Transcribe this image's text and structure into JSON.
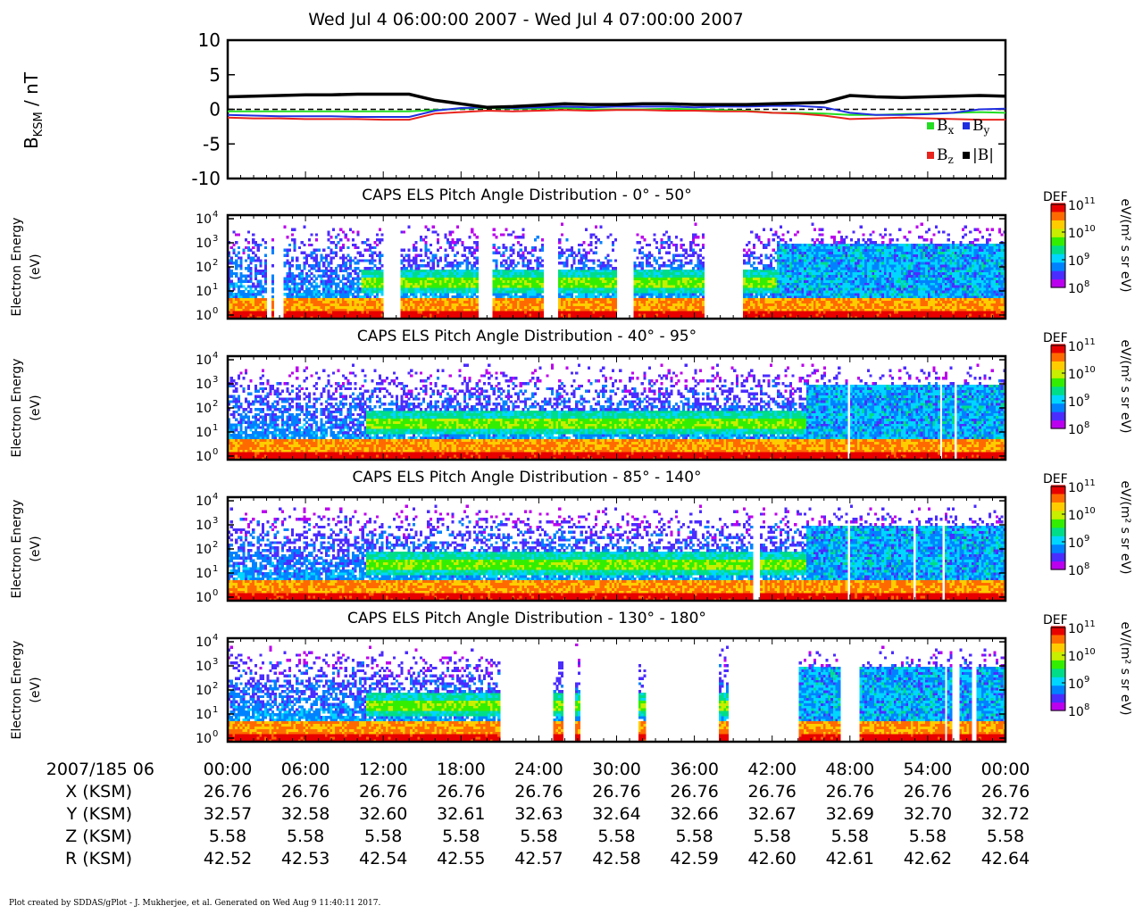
{
  "title": "Wed Jul 4 06:00:00 2007 - Wed Jul 4 07:00:00 2007",
  "footer": "Plot created by SDDAS/gPlot - J. Mukherjee, et al.  Generated on Wed Aug 9 11:40:11 2017.",
  "colors": {
    "bx": "#22dd22",
    "by": "#1f2fe0",
    "bz": "#e8241c",
    "btot": "#000000",
    "colormap": [
      "#bb00ee",
      "#4b2cff",
      "#0082ff",
      "#00d6ff",
      "#00dd88",
      "#33ee00",
      "#c8ee00",
      "#ffcc00",
      "#ff6a00",
      "#e80000"
    ]
  },
  "chart_data": [
    {
      "type": "line",
      "ylabel_main": "B",
      "ylabel_sub": "KSM",
      "ylabel_rest": " / nT",
      "yticks": [
        10,
        5,
        0,
        -5,
        -10
      ],
      "ylim": [
        -10,
        10
      ],
      "zero_line": "dashed",
      "x": [
        0,
        2,
        4,
        6,
        8,
        10,
        12,
        14,
        16,
        18,
        20,
        22,
        24,
        26,
        28,
        30,
        32,
        34,
        36,
        38,
        40,
        42,
        44,
        46,
        48,
        50,
        52,
        54,
        56,
        58,
        60
      ],
      "series": [
        {
          "name": "|B|",
          "color": "#000000",
          "values": [
            1.8,
            1.9,
            2.0,
            2.1,
            2.1,
            2.2,
            2.2,
            2.2,
            1.3,
            0.8,
            0.3,
            0.4,
            0.6,
            0.8,
            0.7,
            0.7,
            0.8,
            0.8,
            0.7,
            0.7,
            0.7,
            0.8,
            0.9,
            1.0,
            2.0,
            1.8,
            1.7,
            1.8,
            1.9,
            2.0,
            1.9
          ]
        },
        {
          "name": "B_x",
          "color": "#22dd22",
          "values": [
            -0.3,
            -0.3,
            -0.3,
            -0.3,
            -0.3,
            -0.3,
            -0.3,
            -0.3,
            -0.1,
            0.1,
            0.2,
            0.1,
            0.1,
            0.2,
            0.0,
            0.0,
            0.0,
            0.1,
            0.0,
            -0.1,
            -0.2,
            -0.5,
            -0.5,
            -0.6,
            -0.8,
            -0.8,
            -0.7,
            -0.6,
            -0.5,
            -0.4,
            -0.5
          ]
        },
        {
          "name": "B_y",
          "color": "#1f2fe0",
          "values": [
            -0.8,
            -0.9,
            -1.0,
            -1.0,
            -1.0,
            -1.1,
            -1.1,
            -1.1,
            -0.2,
            0.2,
            0.3,
            0.2,
            0.3,
            0.4,
            0.3,
            0.4,
            0.4,
            0.4,
            0.3,
            0.4,
            0.4,
            0.5,
            0.5,
            0.3,
            -0.5,
            -0.8,
            -0.8,
            -0.7,
            -0.5,
            0.0,
            0.1
          ]
        },
        {
          "name": "B_z",
          "color": "#e8241c",
          "values": [
            -1.2,
            -1.3,
            -1.3,
            -1.4,
            -1.4,
            -1.4,
            -1.5,
            -1.5,
            -0.6,
            -0.4,
            -0.2,
            -0.3,
            -0.2,
            -0.1,
            -0.2,
            -0.1,
            -0.1,
            -0.2,
            -0.2,
            -0.3,
            -0.3,
            -0.5,
            -0.6,
            -0.9,
            -1.4,
            -1.3,
            -1.2,
            -1.3,
            -1.4,
            -1.5,
            -1.5
          ]
        }
      ],
      "legend": [
        {
          "label": "B",
          "sub": "x",
          "color": "#22dd22"
        },
        {
          "label": "B",
          "sub": "y",
          "color": "#1f2fe0"
        },
        {
          "label": "B",
          "sub": "z",
          "color": "#e8241c"
        },
        {
          "label": "|B|",
          "sub": "",
          "color": "#000000"
        }
      ],
      "legend_position": "bottom-right"
    },
    {
      "type": "heatmap",
      "title": "CAPS ELS Pitch Angle Distribution - 0° - 50°",
      "ylabel": [
        "Electron Energy",
        "(eV)"
      ],
      "yaxis": "log",
      "ylim_decades": [
        0,
        4
      ],
      "colorbar": {
        "label": "DEF",
        "unit": "eV/(m² s sr eV)",
        "ticks": [
          "11",
          "10",
          "9",
          "8"
        ]
      },
      "band_ev": [
        10,
        100
      ],
      "gaps_s": [
        [
          15.5,
          17.5
        ],
        [
          18.8,
          21.3
        ],
        [
          22.0,
          22.4
        ],
        [
          63.5,
          70.5
        ],
        [
          102.5,
          108.5
        ],
        [
          129.5,
          136.0
        ],
        [
          159.5,
          166.5
        ],
        [
          195.5,
          211.5
        ]
      ],
      "onset_s": 55,
      "active_from_s": 226
    },
    {
      "type": "heatmap",
      "title": "CAPS ELS Pitch Angle Distribution - 40° - 95°",
      "ylabel": [
        "Electron Energy",
        "(eV)"
      ],
      "yaxis": "log",
      "ylim_decades": [
        0,
        4
      ],
      "colorbar": {
        "label": "DEF",
        "unit": "eV/(m² s sr eV)",
        "ticks": [
          "11",
          "10",
          "9",
          "8"
        ]
      },
      "band_ev": [
        10,
        100
      ],
      "gaps_s": [
        [
          255.0,
          255.5
        ],
        [
          283.5,
          284.0
        ],
        [
          293.0,
          293.5
        ],
        [
          299.0,
          299.5
        ]
      ],
      "onset_s": 57,
      "active_from_s": 238
    },
    {
      "type": "heatmap",
      "title": "CAPS ELS Pitch Angle Distribution - 85° - 140°",
      "ylabel": [
        "Electron Energy",
        "(eV)"
      ],
      "yaxis": "log",
      "ylim_decades": [
        0,
        4
      ],
      "colorbar": {
        "label": "DEF",
        "unit": "eV/(m² s sr eV)",
        "ticks": [
          "11",
          "10",
          "9",
          "8"
        ]
      },
      "band_ev": [
        10,
        100
      ],
      "gaps_s": [
        [
          215.5,
          218.5
        ],
        [
          255.0,
          255.5
        ],
        [
          282.0,
          282.5
        ],
        [
          294.0,
          294.5
        ]
      ],
      "onset_s": 57,
      "active_from_s": 238
    },
    {
      "type": "heatmap",
      "title": "CAPS ELS Pitch Angle Distribution - 130° - 180°",
      "ylabel": [
        "Electron Energy",
        "(eV)"
      ],
      "yaxis": "log",
      "ylim_decades": [
        0,
        4
      ],
      "colorbar": {
        "label": "DEF",
        "unit": "eV/(m² s sr eV)",
        "ticks": [
          "11",
          "10",
          "9",
          "8"
        ]
      },
      "band_ev": [
        10,
        100
      ],
      "gaps_s": [
        [
          111.5,
          133.5
        ],
        [
          137.5,
          143.0
        ],
        [
          144.8,
          168.5
        ],
        [
          171.5,
          202.0
        ],
        [
          205.5,
          235.0
        ],
        [
          252.0,
          260.0
        ],
        [
          294.5,
          296.0
        ],
        [
          297.5,
          300.5
        ],
        [
          306.0,
          308.0
        ]
      ],
      "onset_s": 57,
      "active_from_s": 232
    }
  ],
  "time_axis": {
    "date_label": "2007/185 06",
    "ticks": [
      "00:00",
      "06:00",
      "12:00",
      "18:00",
      "24:00",
      "30:00",
      "36:00",
      "42:00",
      "48:00",
      "54:00",
      "00:00"
    ],
    "rows": [
      {
        "label": "X (KSM)",
        "values": [
          "26.76",
          "26.76",
          "26.76",
          "26.76",
          "26.76",
          "26.76",
          "26.76",
          "26.76",
          "26.76",
          "26.76",
          "26.76"
        ]
      },
      {
        "label": "Y (KSM)",
        "values": [
          "32.57",
          "32.58",
          "32.60",
          "32.61",
          "32.63",
          "32.64",
          "32.66",
          "32.67",
          "32.69",
          "32.70",
          "32.72"
        ]
      },
      {
        "label": "Z (KSM)",
        "values": [
          "5.58",
          "5.58",
          "5.58",
          "5.58",
          "5.58",
          "5.58",
          "5.58",
          "5.58",
          "5.58",
          "5.58",
          "5.58"
        ]
      },
      {
        "label": "R (KSM)",
        "values": [
          "42.52",
          "42.53",
          "42.54",
          "42.55",
          "42.57",
          "42.58",
          "42.59",
          "42.60",
          "42.61",
          "42.62",
          "42.64"
        ]
      }
    ]
  }
}
